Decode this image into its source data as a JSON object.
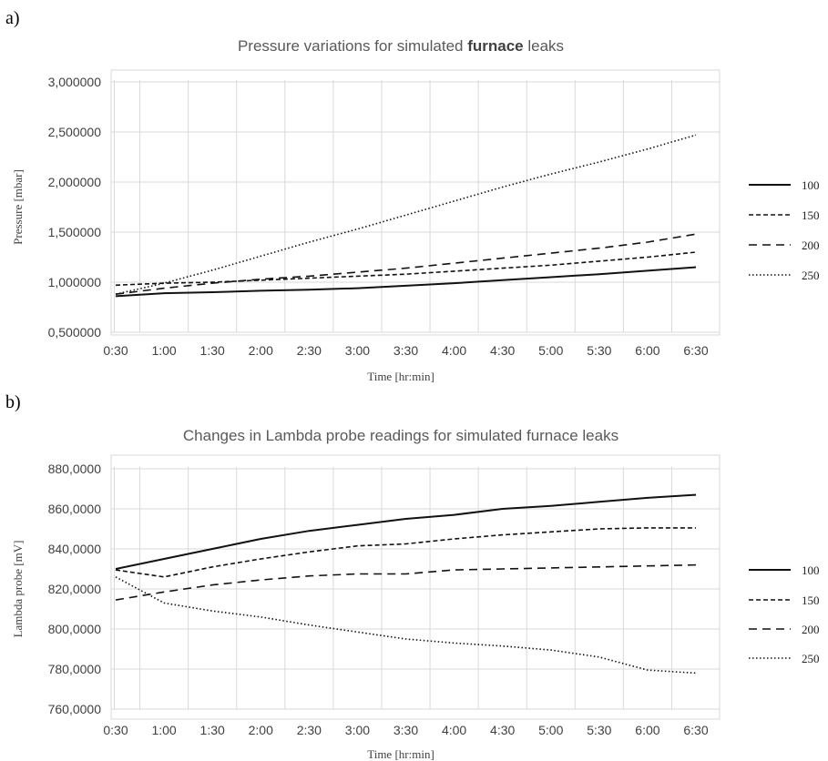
{
  "panels": [
    "a)",
    "b)"
  ],
  "chart_data": [
    {
      "type": "line",
      "title_pre": "Pressure variations for simulated ",
      "title_bold": "furnace",
      "title_post": " leaks",
      "xlabel": "Time [hr:min]",
      "ylabel": "Pressure [mbar]",
      "ylim": [
        0.5,
        3.0
      ],
      "yticks": [
        {
          "v": 0.5,
          "label": "0,500000"
        },
        {
          "v": 1.0,
          "label": "1,000000"
        },
        {
          "v": 1.5,
          "label": "1,500000"
        },
        {
          "v": 2.0,
          "label": "2,000000"
        },
        {
          "v": 2.5,
          "label": "2,500000"
        },
        {
          "v": 3.0,
          "label": "3,000000"
        }
      ],
      "categories": [
        "0:30",
        "1:00",
        "1:30",
        "2:00",
        "2:30",
        "3:00",
        "3:30",
        "4:00",
        "4:30",
        "5:00",
        "5:30",
        "6:00",
        "6:30"
      ],
      "grid": true,
      "legend_position": "right",
      "series": [
        {
          "name": "100",
          "style": "solid",
          "values": [
            0.86,
            0.89,
            0.9,
            0.915,
            0.925,
            0.94,
            0.965,
            0.99,
            1.02,
            1.05,
            1.08,
            1.115,
            1.15
          ]
        },
        {
          "name": "150",
          "style": "dash-short",
          "values": [
            0.97,
            0.99,
            1.0,
            1.02,
            1.04,
            1.06,
            1.08,
            1.11,
            1.14,
            1.17,
            1.21,
            1.25,
            1.3
          ]
        },
        {
          "name": "200",
          "style": "dash-long",
          "values": [
            0.88,
            0.94,
            0.99,
            1.03,
            1.06,
            1.1,
            1.14,
            1.19,
            1.24,
            1.29,
            1.34,
            1.4,
            1.48
          ]
        },
        {
          "name": "250",
          "style": "dotted",
          "values": [
            0.88,
            0.99,
            1.12,
            1.26,
            1.4,
            1.53,
            1.67,
            1.81,
            1.95,
            2.08,
            2.2,
            2.33,
            2.47
          ]
        }
      ]
    },
    {
      "type": "line",
      "title_pre": "Changes in Lambda probe readings for simulated furnace leaks",
      "title_bold": "",
      "title_post": "",
      "xlabel": "Time [hr:min]",
      "ylabel": "Lambda probe [mV]",
      "ylim": [
        760,
        880
      ],
      "yticks": [
        {
          "v": 760,
          "label": "760,0000"
        },
        {
          "v": 780,
          "label": "780,0000"
        },
        {
          "v": 800,
          "label": "800,0000"
        },
        {
          "v": 820,
          "label": "820,0000"
        },
        {
          "v": 840,
          "label": "840,0000"
        },
        {
          "v": 860,
          "label": "860,0000"
        },
        {
          "v": 880,
          "label": "880,0000"
        }
      ],
      "categories": [
        "0:30",
        "1:00",
        "1:30",
        "2:00",
        "2:30",
        "3:00",
        "3:30",
        "4:00",
        "4:30",
        "5:00",
        "5:30",
        "6:00",
        "6:30"
      ],
      "grid": true,
      "legend_position": "right",
      "series": [
        {
          "name": "100",
          "style": "solid",
          "values": [
            830,
            835,
            840,
            845,
            849,
            852,
            855,
            857,
            860,
            861.5,
            863.5,
            865.5,
            867
          ]
        },
        {
          "name": "150",
          "style": "dash-short",
          "values": [
            829.5,
            826,
            831,
            835,
            838.5,
            841.5,
            842.5,
            845,
            847,
            848.5,
            850,
            850.5,
            850.5
          ]
        },
        {
          "name": "200",
          "style": "dash-long",
          "values": [
            814.5,
            818.5,
            822,
            824.5,
            826.5,
            827.5,
            827.5,
            829.5,
            830,
            830.5,
            831,
            831.5,
            832
          ]
        },
        {
          "name": "250",
          "style": "dotted",
          "values": [
            826,
            813,
            809,
            806,
            802,
            798.5,
            795,
            793,
            791.5,
            789.5,
            786,
            779.5,
            778
          ]
        }
      ]
    }
  ]
}
